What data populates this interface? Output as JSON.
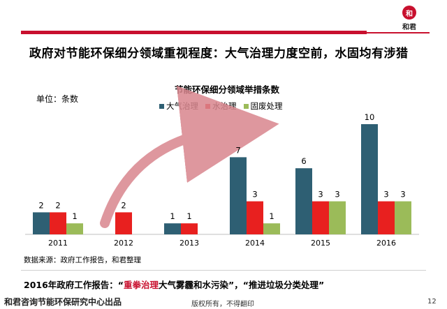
{
  "header": {
    "title": "政府对节能环保细分领域重视程度：大气治理力度空前，水固均有涉猎",
    "logo_text": "和君",
    "logo_seal": "和"
  },
  "chart_data": {
    "type": "bar",
    "title": "节能环保细分领域举措条数",
    "unit_label": "单位：条数",
    "categories": [
      "2011",
      "2012",
      "2013",
      "2014",
      "2015",
      "2016"
    ],
    "series": [
      {
        "name": "大气治理",
        "color": "#2e5f73",
        "values": [
          2,
          null,
          1,
          7,
          6,
          10
        ]
      },
      {
        "name": "水治理",
        "color": "#e8201f",
        "values": [
          2,
          2,
          1,
          3,
          3,
          3
        ]
      },
      {
        "name": "固废处理",
        "color": "#9bbb59",
        "values": [
          1,
          null,
          null,
          1,
          3,
          3
        ]
      }
    ],
    "ylim": [
      0,
      10
    ],
    "grid": false,
    "legend": "top-center",
    "source": "数据来源：政府工作报告，和君整理"
  },
  "policy": {
    "prefix": "2016年政府工作报告：“",
    "highlight": "重拳治理",
    "rest": "大气雾霾和水污染”，“推进垃圾分类处理”"
  },
  "footer": {
    "left": "和君咨询节能环保研究中心出品",
    "center": "版权所有，不得翻印",
    "page": "12"
  },
  "colors": {
    "accent": "#c8102e",
    "arrow": "#d9868e"
  }
}
